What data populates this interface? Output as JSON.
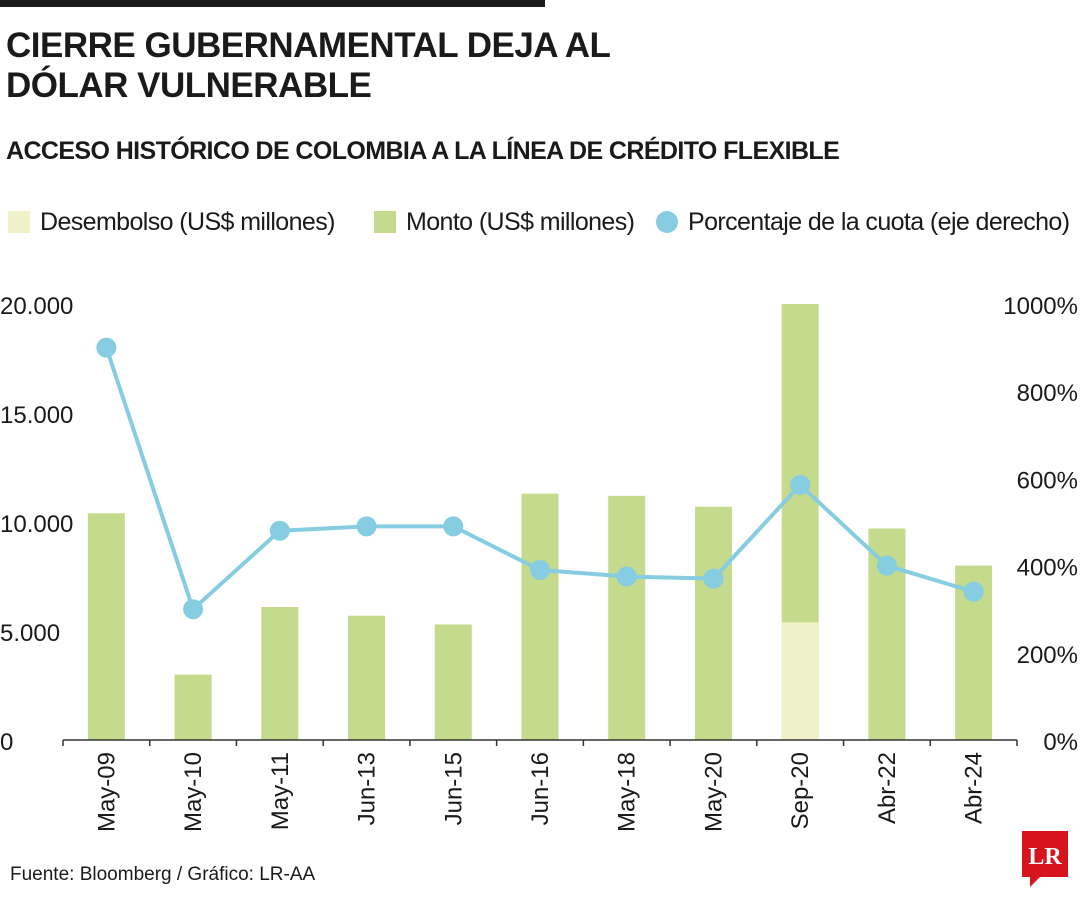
{
  "header": {
    "title": "CIERRE GUBERNAMENTAL DEJA AL DÓLAR VULNERABLE",
    "subtitle": "ACCESO HISTÓRICO DE COLOMBIA A LA LÍNEA DE CRÉDITO FLEXIBLE"
  },
  "legend": {
    "items": [
      {
        "label": "Desembolso (US$ millones)",
        "color": "#eff2c9",
        "shape": "square"
      },
      {
        "label": "Monto (US$ millones)",
        "color": "#c4da8c",
        "shape": "square"
      },
      {
        "label": "Porcentaje de la cuota (eje derecho)",
        "color": "#86cde1",
        "shape": "circle"
      }
    ]
  },
  "chart_data": {
    "type": "bar",
    "categories": [
      "May-09",
      "May-10",
      "May-11",
      "Jun-13",
      "Jun-15",
      "Jun-16",
      "May-18",
      "May-20",
      "Sep-20",
      "Abr-22",
      "Abr-24"
    ],
    "series": [
      {
        "name": "Monto (US$ millones)",
        "type": "bar",
        "axis": "left",
        "values": [
          10400,
          3000,
          6100,
          5700,
          5300,
          11300,
          11200,
          10700,
          20000,
          9700,
          8000
        ]
      },
      {
        "name": "Desembolso (US$ millones)",
        "type": "bar",
        "axis": "left",
        "values": [
          0,
          0,
          0,
          0,
          0,
          0,
          0,
          0,
          5400,
          0,
          0
        ]
      },
      {
        "name": "Porcentaje de la cuota (eje derecho)",
        "type": "line",
        "axis": "right",
        "values": [
          900,
          300,
          480,
          490,
          490,
          390,
          375,
          370,
          585,
          400,
          340
        ]
      }
    ],
    "y_left": {
      "min": 0,
      "max": 20000,
      "ticks": [
        "0",
        "5.000",
        "10.000",
        "15.000",
        "20.000"
      ],
      "tick_values": [
        0,
        5000,
        10000,
        15000,
        20000
      ]
    },
    "y_right": {
      "min": 0,
      "max": 1000,
      "ticks": [
        "0%",
        "200%",
        "400%",
        "600%",
        "800%",
        "1000%"
      ],
      "tick_values": [
        0,
        200,
        400,
        600,
        800,
        1000
      ]
    },
    "colors": {
      "monto": "#c4da8c",
      "desembolso": "#eff2c9",
      "line": "#86cde1",
      "axis": "#333333",
      "text": "#1a1a1a"
    },
    "grid": false,
    "legend_position": "top"
  },
  "footer": {
    "source": "Fuente: Bloomberg / Gráfico: LR-AA",
    "logo_text": "LR",
    "logo_color": "#d7131c"
  }
}
